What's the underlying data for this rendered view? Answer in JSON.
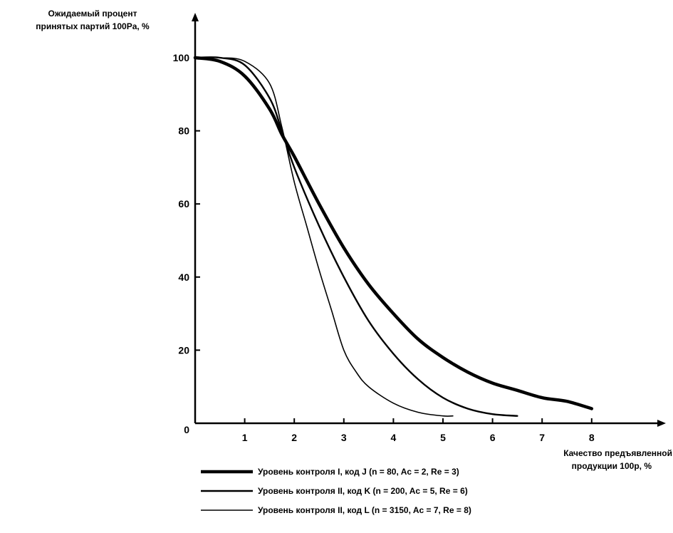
{
  "chart_data": {
    "type": "line",
    "ylabel": [
      "Ожидаемый процент",
      "принятых партий 100Pa, %"
    ],
    "xlabel": [
      "Качество предъявленной",
      "продукции 100p, %"
    ],
    "origin_label": "0",
    "x_ticks": [
      1,
      2,
      3,
      4,
      5,
      6,
      7,
      8
    ],
    "y_ticks": [
      20,
      40,
      60,
      80,
      100
    ],
    "xlim": [
      0,
      9.5
    ],
    "ylim": [
      0,
      100
    ],
    "grid": false,
    "legend_position": "bottom",
    "series": [
      {
        "name": "Уровень контроля I, код J (n = 80, Ac = 2, Re = 3)",
        "line_weight": "thick",
        "x": [
          0,
          0.5,
          1.0,
          1.5,
          1.75,
          2.0,
          2.5,
          3.0,
          3.5,
          4.0,
          4.5,
          5.0,
          5.5,
          6.0,
          6.5,
          7.0,
          7.5,
          8.0
        ],
        "y": [
          100,
          99,
          95,
          86,
          79,
          73,
          60,
          48,
          38,
          30,
          23,
          18,
          14,
          11,
          9,
          7,
          6,
          4
        ]
      },
      {
        "name": "Уровень контроля II, код K (n = 200, Ac = 5, Re = 6)",
        "line_weight": "medium",
        "x": [
          0,
          0.5,
          1.0,
          1.5,
          1.75,
          2.0,
          2.5,
          3.0,
          3.5,
          4.0,
          4.5,
          5.0,
          5.5,
          6.0,
          6.5
        ],
        "y": [
          100,
          100,
          98,
          89,
          80,
          70,
          54,
          40,
          28,
          19,
          12,
          7,
          4,
          2.5,
          2
        ]
      },
      {
        "name": "Уровень контроля II, код L (n = 3150, Ac = 7, Re = 8)",
        "line_weight": "thin",
        "x": [
          0,
          0.5,
          1.0,
          1.5,
          1.75,
          2.0,
          2.25,
          2.5,
          2.75,
          3.0,
          3.25,
          3.5,
          4.0,
          4.5,
          5.0,
          5.2
        ],
        "y": [
          100,
          100,
          99,
          93,
          81,
          66,
          54,
          42,
          31,
          20,
          14,
          10,
          5.5,
          3,
          2,
          2
        ]
      }
    ]
  }
}
